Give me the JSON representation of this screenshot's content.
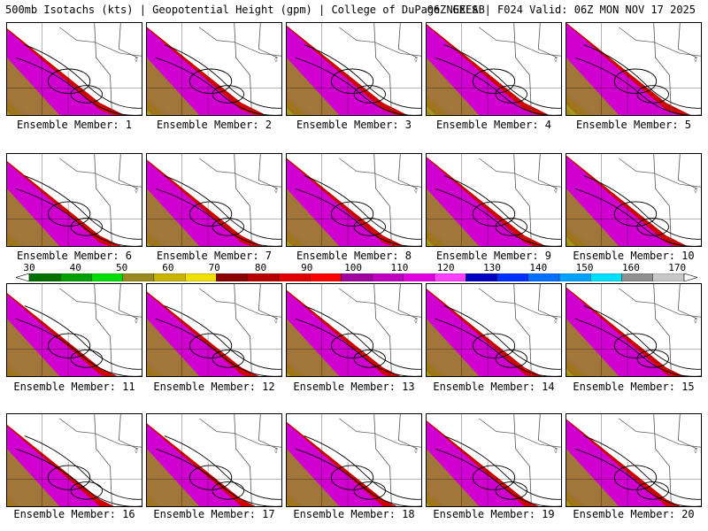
{
  "header": {
    "title": "500mb Isotachs (kts) | Geopotential Height (gpm) | College of DuPage NEXLAB",
    "model_info": "06Z GEFS | F024 Valid: 06Z MON NOV 17 2025"
  },
  "colorbar": {
    "labels": [
      "30",
      "40",
      "50",
      "60",
      "70",
      "80",
      "90",
      "100",
      "110",
      "120",
      "130",
      "140",
      "150",
      "160",
      "170"
    ],
    "colors": [
      "#007000",
      "#00a000",
      "#00dd00",
      "#9a8a20",
      "#c8b400",
      "#f0e000",
      "#8b0000",
      "#b80000",
      "#e00000",
      "#ff0000",
      "#a000a0",
      "#c000c0",
      "#e000e0",
      "#ff40ff",
      "#0000c0",
      "#0030ff",
      "#0070ff",
      "#00a0ff",
      "#00e0ff",
      "#909090",
      "#c8c8c8"
    ]
  },
  "map_colors": {
    "gray_roads": "#555555",
    "green_light": "#00c800",
    "green_dark": "#007800",
    "olive": "#9a8a20",
    "yellow": "#f0e000",
    "red_dark": "#a00000",
    "red": "#d00000",
    "purple": "#a000a0",
    "magenta": "#d000d0"
  },
  "members": [
    {
      "label": "Ensemble Member: 1"
    },
    {
      "label": "Ensemble Member: 2"
    },
    {
      "label": "Ensemble Member: 3"
    },
    {
      "label": "Ensemble Member: 4"
    },
    {
      "label": "Ensemble Member: 5"
    },
    {
      "label": "Ensemble Member: 6"
    },
    {
      "label": "Ensemble Member: 7"
    },
    {
      "label": "Ensemble Member: 8"
    },
    {
      "label": "Ensemble Member: 9"
    },
    {
      "label": "Ensemble Member: 10"
    },
    {
      "label": "Ensemble Member: 11"
    },
    {
      "label": "Ensemble Member: 12"
    },
    {
      "label": "Ensemble Member: 13"
    },
    {
      "label": "Ensemble Member: 14"
    },
    {
      "label": "Ensemble Member: 15"
    },
    {
      "label": "Ensemble Member: 16"
    },
    {
      "label": "Ensemble Member: 17"
    },
    {
      "label": "Ensemble Member: 18"
    },
    {
      "label": "Ensemble Member: 19"
    },
    {
      "label": "Ensemble Member: 20"
    }
  ]
}
